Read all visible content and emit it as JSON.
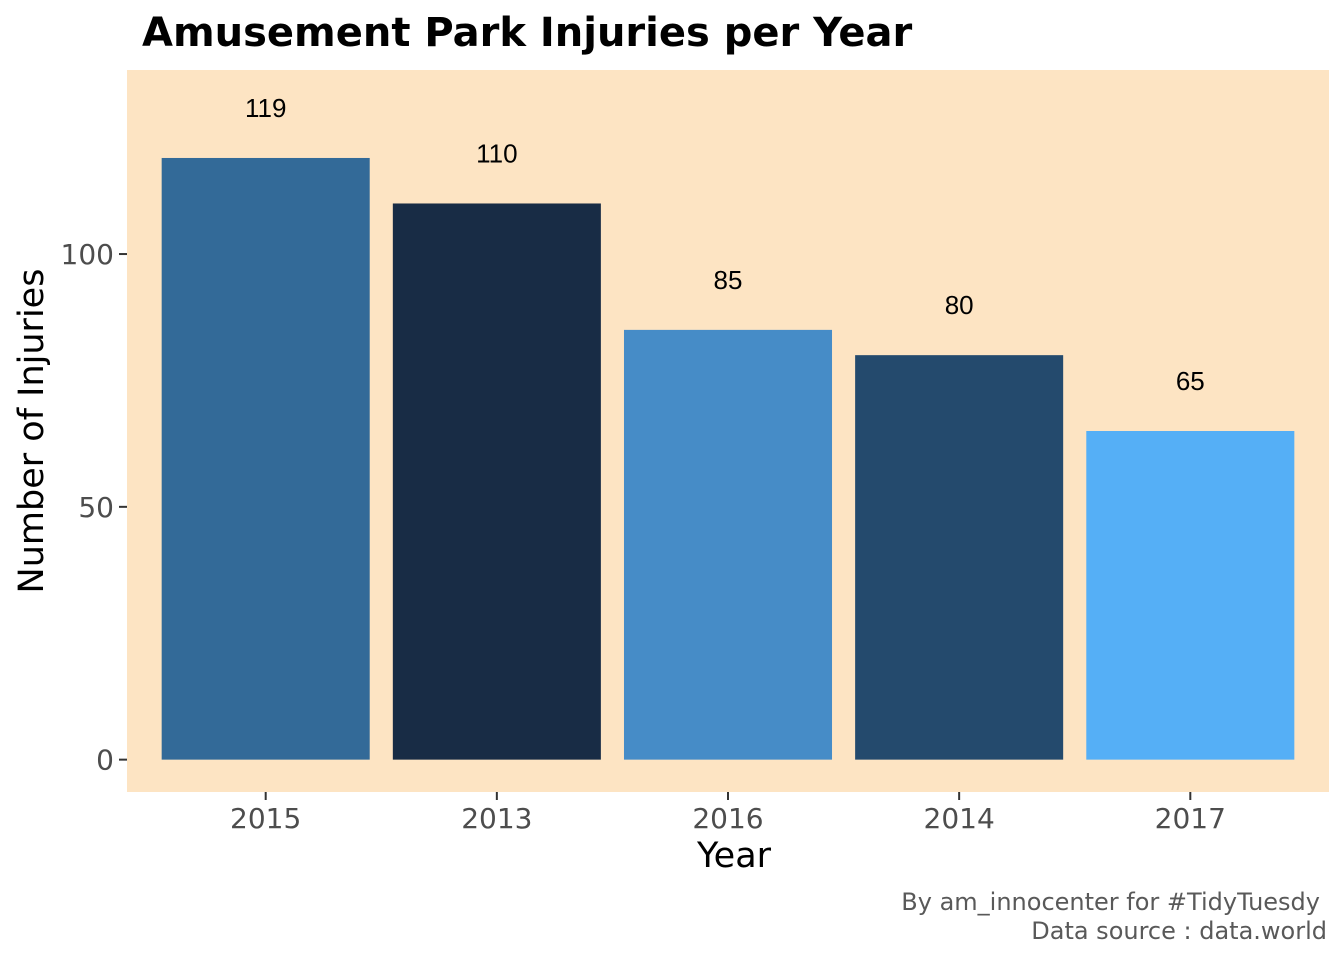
{
  "chart_data": {
    "type": "bar",
    "title": "Amusement Park Injuries per Year",
    "xlabel": "Year",
    "ylabel": "Number of Injuries",
    "categories": [
      "2015",
      "2013",
      "2016",
      "2014",
      "2017"
    ],
    "values": [
      119,
      110,
      85,
      80,
      65
    ],
    "data_labels": [
      "119",
      "110",
      "85",
      "80",
      "65"
    ],
    "bar_colors": [
      "#336A98",
      "#182C45",
      "#468CC7",
      "#244A6D",
      "#55AFF6"
    ],
    "ylim": [
      -6.4,
      136.4
    ],
    "yticks": [
      0,
      50,
      100
    ],
    "ytick_labels": [
      "0",
      "50",
      "100"
    ],
    "grid": false,
    "legend": "none",
    "panel_background": "#FDE4C3",
    "caption": [
      "By am_innocenter for #TidyTuesdy",
      "Data source : data.world"
    ]
  }
}
